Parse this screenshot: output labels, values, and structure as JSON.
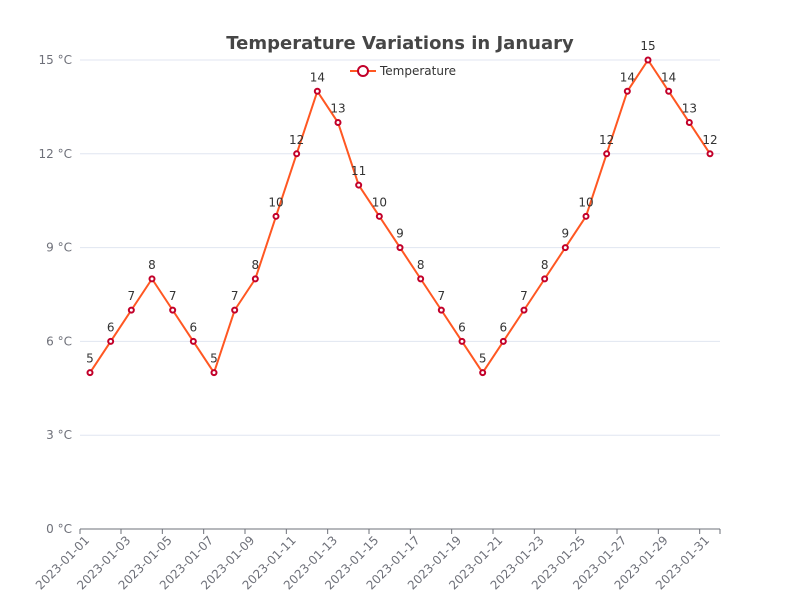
{
  "chart_data": {
    "type": "line",
    "title": "Temperature Variations in January",
    "xlabel": "",
    "ylabel": "",
    "y_unit": "°C",
    "ylim": [
      0,
      15
    ],
    "y_ticks": [
      0,
      3,
      6,
      9,
      12,
      15
    ],
    "legend": {
      "entries": [
        "Temperature"
      ],
      "position": "top-center"
    },
    "x": [
      "2023-01-01",
      "2023-01-02",
      "2023-01-03",
      "2023-01-04",
      "2023-01-05",
      "2023-01-06",
      "2023-01-07",
      "2023-01-08",
      "2023-01-09",
      "2023-01-10",
      "2023-01-11",
      "2023-01-12",
      "2023-01-13",
      "2023-01-14",
      "2023-01-15",
      "2023-01-16",
      "2023-01-17",
      "2023-01-18",
      "2023-01-19",
      "2023-01-20",
      "2023-01-21",
      "2023-01-22",
      "2023-01-23",
      "2023-01-24",
      "2023-01-25",
      "2023-01-26",
      "2023-01-27",
      "2023-01-28",
      "2023-01-29",
      "2023-01-30",
      "2023-01-31"
    ],
    "x_tick_labels": [
      "2023-01-01",
      "2023-01-03",
      "2023-01-05",
      "2023-01-07",
      "2023-01-09",
      "2023-01-11",
      "2023-01-13",
      "2023-01-15",
      "2023-01-17",
      "2023-01-19",
      "2023-01-21",
      "2023-01-23",
      "2023-01-25",
      "2023-01-27",
      "2023-01-29",
      "2023-01-31"
    ],
    "series": [
      {
        "name": "Temperature",
        "values": [
          5,
          6,
          7,
          8,
          7,
          6,
          5,
          7,
          8,
          10,
          12,
          14,
          13,
          11,
          10,
          9,
          8,
          7,
          6,
          5,
          6,
          7,
          8,
          9,
          10,
          12,
          14,
          15,
          14,
          13,
          12
        ],
        "line_color": "#ff5722",
        "marker_color": "#c2002a"
      }
    ],
    "grid": true
  }
}
